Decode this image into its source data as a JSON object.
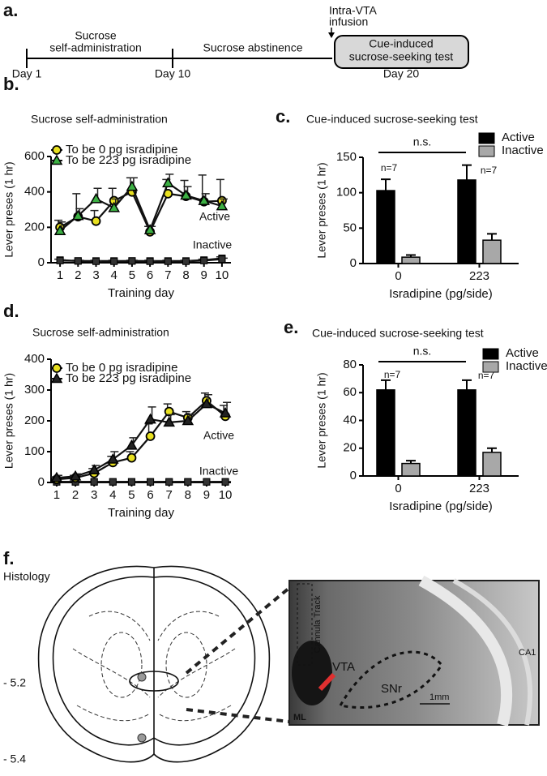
{
  "timeline": {
    "panel_label": "a.",
    "stages": [
      [
        "Sucrose",
        "self-administration"
      ],
      [
        "Sucrose abstinence"
      ],
      [
        "Cue-induced",
        "sucrose-seeking test"
      ]
    ],
    "days": [
      "Day 1",
      "Day 10",
      "Day 20"
    ],
    "infusion": [
      "Intra-VTA",
      "infusion"
    ]
  },
  "chart_data": [
    {
      "type": "line",
      "panel_label": "b.",
      "title": "Sucrose self-administration",
      "x_label": "Training day",
      "y_label": "Lever preses (1 hr)",
      "x": [
        1,
        2,
        3,
        4,
        5,
        6,
        7,
        8,
        9,
        10
      ],
      "xlim": [
        0.5,
        10.5
      ],
      "xticks": [
        1,
        2,
        3,
        4,
        5,
        6,
        7,
        8,
        9,
        10
      ],
      "ylim": [
        0,
        600
      ],
      "yticks": [
        0,
        200,
        400,
        600
      ],
      "annotations": [
        "Active",
        "Inactive"
      ],
      "series": [
        {
          "name": "To be 0 pg isradipine",
          "color": "#e8e020",
          "marker": "circle",
          "values": [
            200,
            260,
            235,
            350,
            400,
            175,
            390,
            375,
            345,
            350
          ],
          "errors": [
            40,
            130,
            60,
            70,
            80,
            30,
            80,
            90,
            150,
            120
          ],
          "inactive_values": [
            15,
            10,
            10,
            10,
            10,
            10,
            10,
            10,
            15,
            25
          ],
          "inactive_errors": [
            5,
            4,
            4,
            4,
            4,
            4,
            4,
            4,
            5,
            8
          ]
        },
        {
          "name": "To be 223 pg isradipine",
          "color": "#3cb043",
          "marker": "triangle",
          "values": [
            180,
            265,
            360,
            310,
            430,
            185,
            450,
            380,
            350,
            320
          ],
          "errors": [
            50,
            40,
            60,
            50,
            50,
            20,
            50,
            50,
            40,
            40
          ],
          "inactive_values": [
            12,
            10,
            8,
            8,
            10,
            8,
            8,
            8,
            12,
            20
          ],
          "inactive_errors": [
            4,
            4,
            3,
            3,
            4,
            3,
            3,
            3,
            4,
            6
          ]
        }
      ]
    },
    {
      "type": "bar",
      "panel_label": "c.",
      "title": "Cue-induced sucrose-seeking test",
      "x_label": "Isradipine (pg/side)",
      "y_label": "Lever preses (1 hr)",
      "categories": [
        "0",
        "223"
      ],
      "ylim": [
        0,
        150
      ],
      "yticks": [
        0,
        50,
        100,
        150
      ],
      "annotations": [
        "n.s.",
        "n=7",
        "n=7"
      ],
      "series": [
        {
          "name": "Active",
          "color": "#000000",
          "values": [
            103,
            118
          ],
          "errors": [
            16,
            21
          ]
        },
        {
          "name": "Inactive",
          "color": "#a8a8a8",
          "values": [
            9,
            33
          ],
          "errors": [
            3,
            9
          ]
        }
      ]
    },
    {
      "type": "line",
      "panel_label": "d.",
      "title": "Sucrose self-administration",
      "x_label": "Training day",
      "y_label": "Lever preses (1 hr)",
      "x": [
        1,
        2,
        3,
        4,
        5,
        6,
        7,
        8,
        9,
        10
      ],
      "xlim": [
        0.7,
        10.3
      ],
      "xticks": [
        1,
        2,
        3,
        4,
        5,
        6,
        7,
        8,
        9,
        10
      ],
      "ylim": [
        0,
        400
      ],
      "yticks": [
        0,
        100,
        200,
        300,
        400
      ],
      "annotations": [
        "Active",
        "Inactive"
      ],
      "series": [
        {
          "name": "To be 0 pg isradipine",
          "color": "#e8e020",
          "marker": "circle",
          "values": [
            10,
            15,
            30,
            65,
            80,
            150,
            230,
            210,
            265,
            215
          ],
          "errors": [
            8,
            8,
            15,
            20,
            20,
            40,
            25,
            20,
            25,
            35
          ],
          "inactive_values": [
            2,
            2,
            2,
            2,
            2,
            2,
            2,
            2,
            2,
            2
          ],
          "inactive_errors": [
            1,
            1,
            1,
            1,
            1,
            1,
            1,
            1,
            1,
            1
          ]
        },
        {
          "name": "To be 223 pg isradipine",
          "color": "#222222",
          "marker": "triangle",
          "values": [
            15,
            20,
            40,
            75,
            120,
            205,
            195,
            200,
            255,
            225
          ],
          "errors": [
            8,
            8,
            15,
            25,
            25,
            40,
            25,
            20,
            30,
            35
          ],
          "inactive_values": [
            2,
            2,
            2,
            2,
            2,
            2,
            2,
            2,
            2,
            2
          ],
          "inactive_errors": [
            1,
            1,
            1,
            1,
            1,
            1,
            1,
            1,
            1,
            1
          ]
        }
      ]
    },
    {
      "type": "bar",
      "panel_label": "e.",
      "title": "Cue-induced sucrose-seeking test",
      "x_label": "Isradipine (pg/side)",
      "y_label": "Lever preses (1 hr)",
      "categories": [
        "0",
        "223"
      ],
      "ylim": [
        0,
        80
      ],
      "yticks": [
        0,
        20,
        40,
        60,
        80
      ],
      "annotations": [
        "n.s.",
        "n=7",
        "n=7"
      ],
      "series": [
        {
          "name": "Active",
          "color": "#000000",
          "values": [
            62,
            62
          ],
          "errors": [
            7,
            7
          ]
        },
        {
          "name": "Inactive",
          "color": "#a8a8a8",
          "values": [
            9,
            17
          ],
          "errors": [
            2,
            3
          ]
        }
      ]
    }
  ],
  "histology": {
    "panel_label": "f.",
    "title": "Histology",
    "levels": [
      "- 5.2",
      "- 5.4"
    ],
    "image_labels": [
      "Cannula Track",
      "VTA",
      "SNr",
      "CA1",
      "ML",
      "1mm"
    ]
  }
}
